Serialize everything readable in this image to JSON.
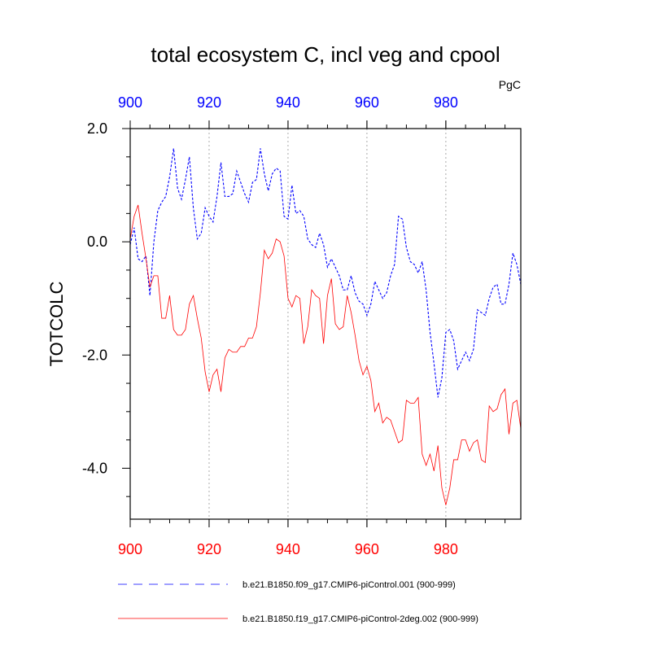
{
  "chart_data": {
    "type": "line",
    "title": "total ecosystem C, incl veg and cpool",
    "units": "PgC",
    "ylabel": "TOTCOLC",
    "xlabel": "",
    "xlim": [
      900,
      999
    ],
    "ylim": [
      -4.9,
      2.0
    ],
    "x_ticks": [
      "900",
      "920",
      "940",
      "960",
      "980"
    ],
    "y_ticks": [
      "2.0",
      "0.0",
      "-2.0",
      "-4.0"
    ],
    "x_tick_values": [
      900,
      920,
      940,
      960,
      980
    ],
    "y_tick_values": [
      2.0,
      0.0,
      -2.0,
      -4.0
    ],
    "vertical_gridlines_at": [
      920,
      940,
      960,
      980
    ],
    "x_start": 900,
    "series": [
      {
        "name": "b.e21.B1850.f09_g17.CMIP6-piControl.001 (900-999)",
        "color": "#0000ff",
        "style": "dashed",
        "axis": "top",
        "values": [
          -0.05,
          0.25,
          -0.3,
          -0.35,
          -0.25,
          -0.95,
          0.0,
          0.55,
          0.7,
          0.8,
          1.15,
          1.65,
          0.95,
          0.75,
          1.1,
          1.5,
          0.6,
          0.05,
          0.15,
          0.6,
          0.45,
          0.35,
          0.8,
          1.4,
          0.8,
          0.8,
          0.85,
          1.25,
          1.05,
          0.85,
          0.7,
          1.05,
          1.1,
          1.65,
          1.2,
          0.9,
          1.2,
          1.3,
          1.25,
          0.45,
          0.4,
          1.0,
          0.5,
          0.55,
          0.45,
          0.05,
          -0.05,
          -0.1,
          0.15,
          -0.05,
          -0.45,
          -0.3,
          -0.45,
          -0.6,
          -0.85,
          -0.85,
          -0.6,
          -0.9,
          -1.05,
          -1.1,
          -1.3,
          -1.1,
          -0.7,
          -0.85,
          -1.0,
          -0.9,
          -0.6,
          -0.4,
          0.45,
          0.4,
          -0.1,
          -0.35,
          -0.4,
          -0.55,
          -0.35,
          -0.85,
          -1.6,
          -2.15,
          -2.75,
          -2.4,
          -1.6,
          -1.55,
          -1.75,
          -2.25,
          -2.1,
          -1.95,
          -2.1,
          -1.9,
          -1.2,
          -1.25,
          -1.3,
          -1.0,
          -0.8,
          -0.75,
          -1.1,
          -1.1,
          -0.75,
          -0.2,
          -0.4,
          -0.75
        ]
      },
      {
        "name": "b.e21.B1850.f19_g17.CMIP6-piControl-2deg.002 (900-999)",
        "color": "#ff0000",
        "style": "solid",
        "axis": "bottom",
        "values": [
          0.05,
          0.45,
          0.65,
          0.15,
          -0.3,
          -0.8,
          -0.6,
          -0.6,
          -1.35,
          -1.35,
          -0.95,
          -1.55,
          -1.65,
          -1.65,
          -1.55,
          -1.1,
          -0.95,
          -1.35,
          -1.7,
          -2.3,
          -2.65,
          -2.35,
          -2.25,
          -2.65,
          -2.05,
          -1.9,
          -1.95,
          -1.95,
          -1.85,
          -1.85,
          -1.7,
          -1.7,
          -1.5,
          -0.9,
          -0.15,
          -0.3,
          -0.2,
          0.05,
          0.0,
          -0.25,
          -1.0,
          -1.15,
          -0.95,
          -1.0,
          -1.8,
          -1.5,
          -0.85,
          -0.95,
          -1.0,
          -1.8,
          -0.95,
          -0.65,
          -1.45,
          -1.55,
          -1.5,
          -0.95,
          -1.25,
          -1.65,
          -2.1,
          -2.35,
          -2.2,
          -2.45,
          -3.0,
          -2.85,
          -3.2,
          -3.1,
          -3.15,
          -3.35,
          -3.55,
          -3.5,
          -2.8,
          -2.85,
          -2.85,
          -2.75,
          -3.75,
          -3.95,
          -3.75,
          -4.05,
          -3.6,
          -4.35,
          -4.65,
          -4.35,
          -3.85,
          -3.85,
          -3.5,
          -3.5,
          -3.7,
          -3.55,
          -3.5,
          -3.85,
          -3.9,
          -2.9,
          -3.0,
          -2.95,
          -2.7,
          -2.6,
          -3.4,
          -2.85,
          -2.8,
          -3.3
        ]
      }
    ]
  }
}
